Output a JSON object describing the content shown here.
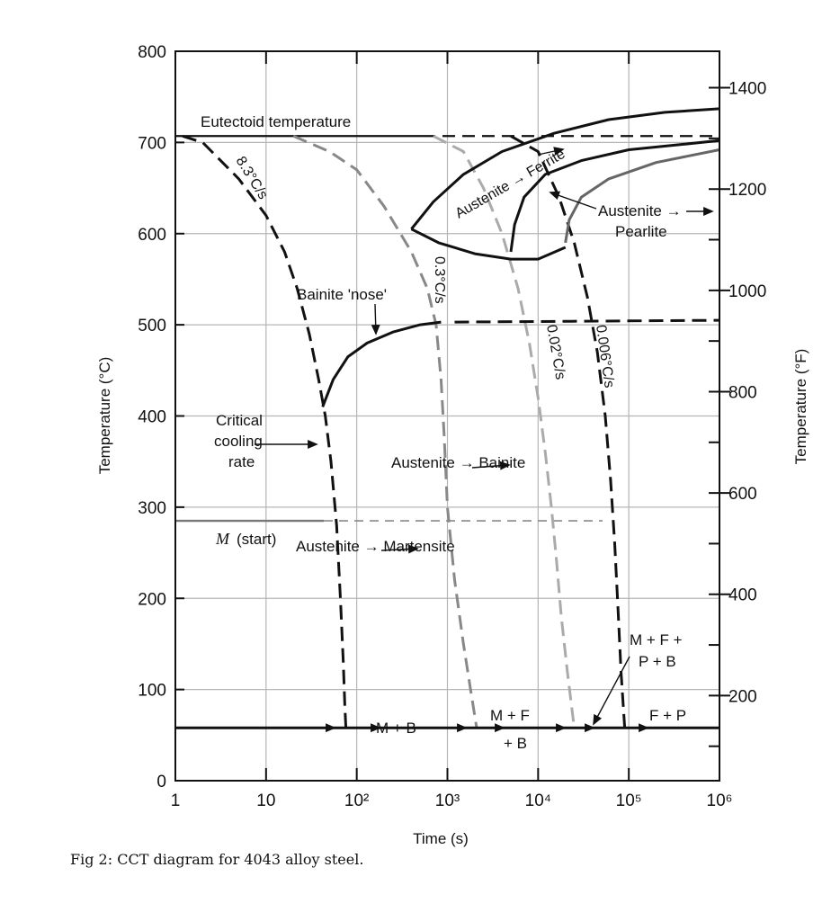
{
  "caption": "Fig 2:  CCT diagram for 4043 alloy steel.",
  "chart_data": {
    "type": "line",
    "title": "",
    "xlabel": "Time (s)",
    "ylabel": "Temperature (°C)",
    "y2label": "Temperature (°F)",
    "x_scale": "log",
    "xlim": [
      1,
      1000000
    ],
    "ylim": [
      0,
      800
    ],
    "y2lim": [
      32,
      1472
    ],
    "grid": true,
    "x_ticks": [
      {
        "value": 1,
        "label": "1"
      },
      {
        "value": 10,
        "label": "10"
      },
      {
        "value": 100,
        "label": "10²"
      },
      {
        "value": 1000,
        "label": "10³"
      },
      {
        "value": 10000,
        "label": "10⁴"
      },
      {
        "value": 100000,
        "label": "10⁵"
      },
      {
        "value": 1000000,
        "label": "10⁶"
      }
    ],
    "y_ticks": [
      {
        "value": 0,
        "label": "0"
      },
      {
        "value": 100,
        "label": "100"
      },
      {
        "value": 200,
        "label": "200"
      },
      {
        "value": 300,
        "label": "300"
      },
      {
        "value": 400,
        "label": "400"
      },
      {
        "value": 500,
        "label": "500"
      },
      {
        "value": 600,
        "label": "600"
      },
      {
        "value": 700,
        "label": "700"
      },
      {
        "value": 800,
        "label": "800"
      }
    ],
    "y2_ticks": [
      {
        "value": 200,
        "label": "200"
      },
      {
        "value": 400,
        "label": "400"
      },
      {
        "value": 600,
        "label": "600"
      },
      {
        "value": 800,
        "label": "800"
      },
      {
        "value": 1000,
        "label": "1000"
      },
      {
        "value": 1200,
        "label": "1200"
      },
      {
        "value": 1400,
        "label": "1400"
      }
    ],
    "reference_lines": [
      {
        "label": "Eutectoid temperature",
        "y": 707
      },
      {
        "label": "M (start)",
        "y": 285
      }
    ],
    "curves": [
      {
        "label": "8.3°C/s",
        "style": "dashed",
        "color": "#111111",
        "points": [
          [
            1.2,
            707
          ],
          [
            2,
            700
          ],
          [
            5,
            660
          ],
          [
            10,
            620
          ],
          [
            16,
            580
          ],
          [
            22,
            540
          ],
          [
            30,
            490
          ],
          [
            38,
            440
          ],
          [
            45,
            400
          ],
          [
            52,
            350
          ],
          [
            60,
            280
          ],
          [
            66,
            200
          ],
          [
            71,
            130
          ],
          [
            74,
            80
          ],
          [
            76,
            58
          ]
        ]
      },
      {
        "label": "0.3°C/s",
        "style": "dashed",
        "color": "#888888",
        "points": [
          [
            20,
            707
          ],
          [
            50,
            690
          ],
          [
            100,
            670
          ],
          [
            200,
            630
          ],
          [
            400,
            580
          ],
          [
            600,
            540
          ],
          [
            750,
            500
          ],
          [
            850,
            440
          ],
          [
            920,
            380
          ],
          [
            1000,
            300
          ],
          [
            1200,
            220
          ],
          [
            1500,
            150
          ],
          [
            1800,
            100
          ],
          [
            2100,
            58
          ]
        ]
      },
      {
        "label": "0.02°C/s",
        "style": "dashed",
        "color": "#aaaaaa",
        "points": [
          [
            700,
            707
          ],
          [
            1500,
            690
          ],
          [
            2500,
            650
          ],
          [
            4000,
            600
          ],
          [
            6000,
            540
          ],
          [
            8000,
            480
          ],
          [
            10000,
            420
          ],
          [
            12000,
            360
          ],
          [
            14000,
            300
          ],
          [
            16000,
            240
          ],
          [
            18000,
            180
          ],
          [
            21000,
            120
          ],
          [
            25000,
            58
          ]
        ]
      },
      {
        "label": "0.006°C/s",
        "style": "dashed",
        "color": "#111111",
        "points": [
          [
            5000,
            707
          ],
          [
            10000,
            690
          ],
          [
            17000,
            640
          ],
          [
            25000,
            590
          ],
          [
            35000,
            530
          ],
          [
            45000,
            470
          ],
          [
            55000,
            400
          ],
          [
            63000,
            330
          ],
          [
            70000,
            260
          ],
          [
            76000,
            190
          ],
          [
            82000,
            120
          ],
          [
            90000,
            58
          ]
        ]
      },
      {
        "label": "Bainite 'nose'",
        "style": "solid",
        "color": "#111111",
        "points": [
          [
            42,
            410
          ],
          [
            55,
            440
          ],
          [
            80,
            465
          ],
          [
            130,
            480
          ],
          [
            250,
            492
          ],
          [
            500,
            500
          ],
          [
            850,
            503
          ]
        ]
      },
      {
        "label": "Bainite start (extended)",
        "style": "dashed",
        "color": "#111111",
        "points": [
          [
            1200,
            503
          ],
          [
            1000000,
            505
          ]
        ]
      },
      {
        "label": "Austenite → Ferrite start",
        "style": "solid",
        "color": "#111111",
        "points": [
          [
            400,
            605
          ],
          [
            700,
            635
          ],
          [
            1500,
            665
          ],
          [
            4000,
            690
          ],
          [
            15000,
            710
          ],
          [
            60000,
            725
          ],
          [
            250000,
            733
          ],
          [
            1000000,
            737
          ]
        ]
      },
      {
        "label": "Austenite → Ferrite lower boundary",
        "style": "solid",
        "color": "#111111",
        "points": [
          [
            400,
            605
          ],
          [
            800,
            590
          ],
          [
            2000,
            578
          ],
          [
            5000,
            572
          ],
          [
            10000,
            572
          ],
          [
            20000,
            585
          ]
        ]
      },
      {
        "label": "Austenite → Pearlite start",
        "style": "solid",
        "color": "#111111",
        "points": [
          [
            5000,
            580
          ],
          [
            5500,
            610
          ],
          [
            7000,
            640
          ],
          [
            12000,
            665
          ],
          [
            30000,
            680
          ],
          [
            100000,
            692
          ],
          [
            400000,
            698
          ],
          [
            1000000,
            702
          ]
        ]
      },
      {
        "label": "Austenite → Pearlite finish",
        "style": "solid",
        "color": "#666666",
        "points": [
          [
            20000,
            590
          ],
          [
            22000,
            615
          ],
          [
            30000,
            640
          ],
          [
            60000,
            660
          ],
          [
            200000,
            678
          ],
          [
            1000000,
            692
          ]
        ]
      },
      {
        "label": "Final product line",
        "style": "solid",
        "color": "#111111",
        "points": [
          [
            1,
            58
          ],
          [
            1000000,
            58
          ]
        ]
      }
    ],
    "annotations": [
      {
        "text": "Eutectoid temperature"
      },
      {
        "text": "8.3°C/s"
      },
      {
        "text": "0.3°C/s"
      },
      {
        "text": "0.02°C/s"
      },
      {
        "text": "0.006°C/s"
      },
      {
        "text": "Bainite 'nose'"
      },
      {
        "text": "Austenite → Ferrite"
      },
      {
        "text": "Austenite →"
      },
      {
        "text": "Pearlite"
      },
      {
        "text": "Critical"
      },
      {
        "text": "cooling"
      },
      {
        "text": "rate"
      },
      {
        "text": "Austenite → Bainite"
      },
      {
        "text": "M"
      },
      {
        "text": "(start)"
      },
      {
        "text": "Austenite → Martensite"
      },
      {
        "text": "M + F +"
      },
      {
        "text": "P + B"
      },
      {
        "text": "M + F"
      },
      {
        "text": "+ B"
      },
      {
        "text": "F + P"
      },
      {
        "text": "M + B"
      }
    ]
  }
}
